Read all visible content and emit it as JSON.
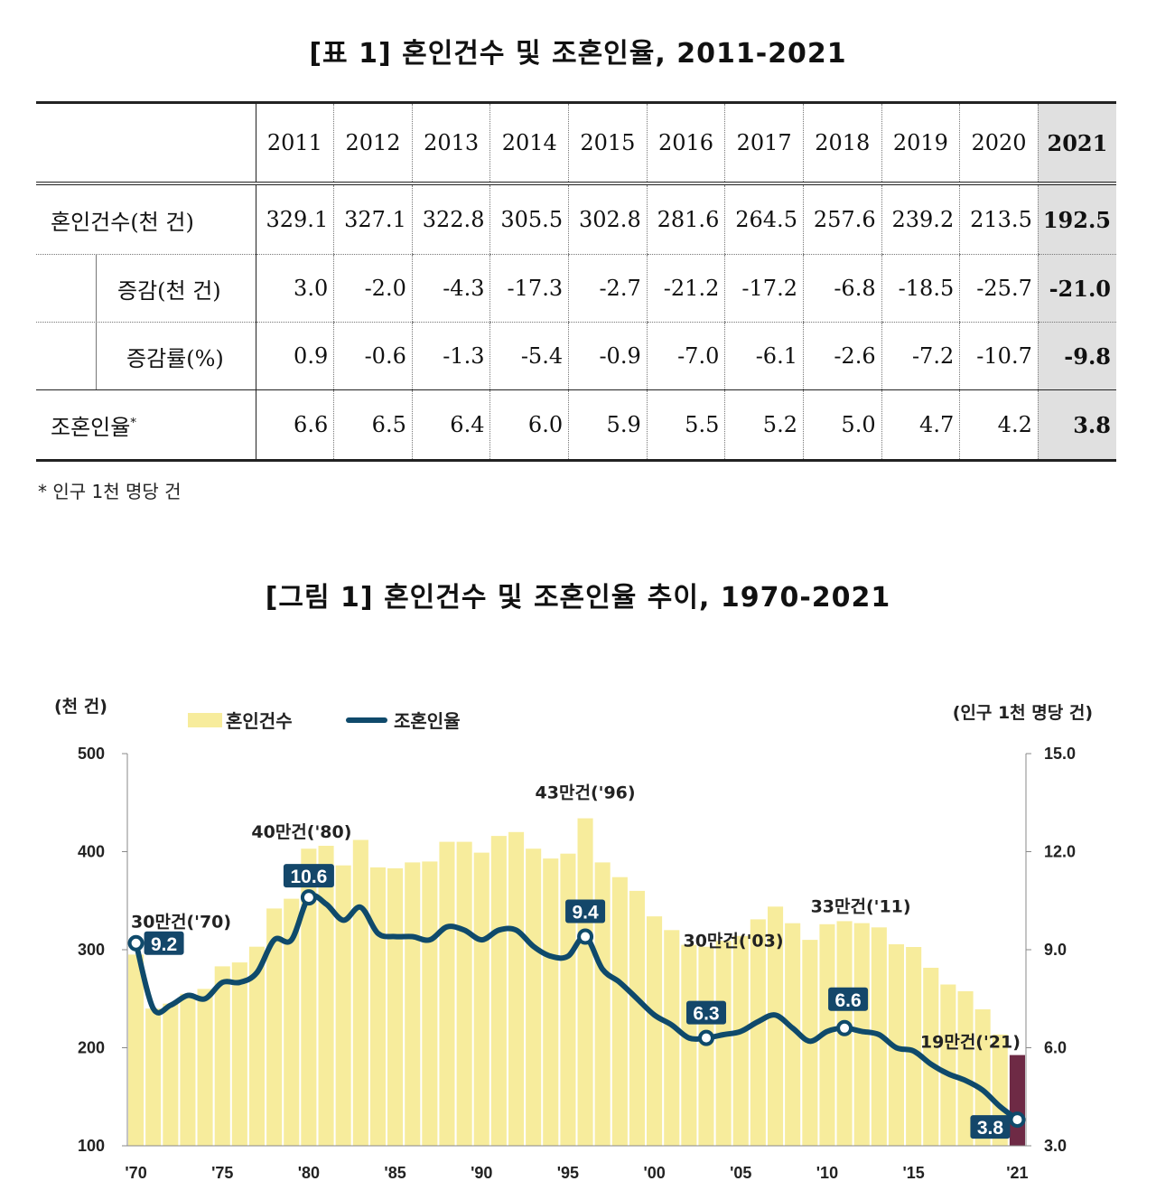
{
  "table_title": "[표 1] 혼인건수 및 조혼인율, 2011-2021",
  "table": {
    "corner": "",
    "years": [
      "2011",
      "2012",
      "2013",
      "2014",
      "2015",
      "2016",
      "2017",
      "2018",
      "2019",
      "2020",
      "2021"
    ],
    "rows": [
      {
        "label": "혼인건수(천 건)",
        "values": [
          "329.1",
          "327.1",
          "322.8",
          "305.5",
          "302.8",
          "281.6",
          "264.5",
          "257.6",
          "239.2",
          "213.5",
          "192.5"
        ]
      },
      {
        "label": "증감(천 건)",
        "values": [
          "3.0",
          "-2.0",
          "-4.3",
          "-17.3",
          "-2.7",
          "-21.2",
          "-17.2",
          "-6.8",
          "-18.5",
          "-25.7",
          "-21.0"
        ]
      },
      {
        "label": "증감률(%)",
        "values": [
          "0.9",
          "-0.6",
          "-1.3",
          "-5.4",
          "-0.9",
          "-7.0",
          "-6.1",
          "-2.6",
          "-7.2",
          "-10.7",
          "-9.8"
        ]
      },
      {
        "label": "조혼인율",
        "label_sup": "*",
        "values": [
          "6.6",
          "6.5",
          "6.4",
          "6.0",
          "5.9",
          "5.5",
          "5.2",
          "5.0",
          "4.7",
          "4.2",
          "3.8"
        ]
      }
    ]
  },
  "footnote": "* 인구 1천 명당 건",
  "figure_title": "[그림 1] 혼인건수 및 조혼인율 추이, 1970-2021",
  "colors": {
    "bar": "#f7ec9c",
    "bar_last": "#6e2a45",
    "line": "#0f4a6b",
    "label_bg": "#14476a"
  },
  "chart_data": {
    "type": "bar+line",
    "title": "[그림 1] 혼인건수 및 조혼인율 추이, 1970-2021",
    "ylabel_left": "(천 건)",
    "ylabel_right": "(인구 1천 명당 건)",
    "legend": [
      "혼인건수",
      "조혼인율"
    ],
    "ylim_left": [
      100,
      500
    ],
    "ylim_right": [
      3.0,
      15.0
    ],
    "yticks_left": [
      "500",
      "400",
      "300",
      "200",
      "100"
    ],
    "yticks_right": [
      "15.0",
      "12.0",
      "9.0",
      "6.0",
      "3.0"
    ],
    "xticks": [
      "'70",
      "'75",
      "'80",
      "'85",
      "'90",
      "'95",
      "'00",
      "'05",
      "'10",
      "'15",
      "'21"
    ],
    "xtick_years": [
      1970,
      1975,
      1980,
      1985,
      1990,
      1995,
      2000,
      2005,
      2010,
      2015,
      2021
    ],
    "years": [
      1970,
      1971,
      1972,
      1973,
      1974,
      1975,
      1976,
      1977,
      1978,
      1979,
      1980,
      1981,
      1982,
      1983,
      1984,
      1985,
      1986,
      1987,
      1988,
      1989,
      1990,
      1991,
      1992,
      1993,
      1994,
      1995,
      1996,
      1997,
      1998,
      1999,
      2000,
      2001,
      2002,
      2003,
      2004,
      2005,
      2006,
      2007,
      2008,
      2009,
      2010,
      2011,
      2012,
      2013,
      2014,
      2015,
      2016,
      2017,
      2018,
      2019,
      2020,
      2021
    ],
    "marriages": [
      295,
      240,
      245,
      255,
      260,
      283,
      287,
      303,
      342,
      352,
      403,
      406,
      386,
      412,
      384,
      383,
      389,
      390,
      410,
      410,
      399,
      416,
      420,
      403,
      393,
      398,
      434,
      389,
      374,
      360,
      334,
      320,
      305,
      303,
      309,
      314,
      331,
      344,
      327,
      310,
      326,
      329.1,
      327.1,
      322.8,
      305.5,
      302.8,
      281.6,
      264.5,
      257.6,
      239.2,
      213.5,
      192.5
    ],
    "crude_rate": [
      9.2,
      7.2,
      7.3,
      7.6,
      7.5,
      8.0,
      8.0,
      8.3,
      9.3,
      9.3,
      10.6,
      10.4,
      9.9,
      10.3,
      9.5,
      9.4,
      9.4,
      9.3,
      9.7,
      9.6,
      9.3,
      9.6,
      9.6,
      9.1,
      8.8,
      8.8,
      9.4,
      8.4,
      8.0,
      7.5,
      7.0,
      6.7,
      6.3,
      6.3,
      6.4,
      6.5,
      6.8,
      7.0,
      6.6,
      6.2,
      6.5,
      6.6,
      6.5,
      6.4,
      6.0,
      5.9,
      5.5,
      5.2,
      5.0,
      4.7,
      4.2,
      3.8
    ],
    "rate_labels": [
      {
        "year": 1970,
        "text": "9.2"
      },
      {
        "year": 1980,
        "text": "10.6"
      },
      {
        "year": 1996,
        "text": "9.4"
      },
      {
        "year": 2003,
        "text": "6.3"
      },
      {
        "year": 2011,
        "text": "6.6"
      },
      {
        "year": 2021,
        "text": "3.8"
      }
    ],
    "bar_annotations": [
      {
        "year": 1970,
        "text": "30만건('70)"
      },
      {
        "year": 1980,
        "text": "40만건('80)"
      },
      {
        "year": 1996,
        "text": "43만건('96)"
      },
      {
        "year": 2003,
        "text": "30만건('03)"
      },
      {
        "year": 2011,
        "text": "33만건('11)"
      },
      {
        "year": 2021,
        "text": "19만건('21)"
      }
    ]
  }
}
